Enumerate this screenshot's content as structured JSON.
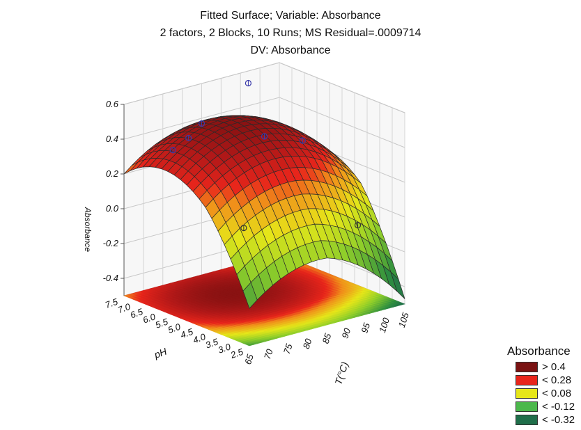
{
  "chart_data": {
    "type": "surface3d",
    "title_lines": [
      "Fitted Surface; Variable: Absorbance",
      "2 factors, 2 Blocks, 10 Runs; MS Residual=.0009714",
      "DV: Absorbance"
    ],
    "x_label": "T(°C)",
    "y_label": "pH",
    "z_label": "Absorbance",
    "x_ticks": [
      "65",
      "70",
      "75",
      "80",
      "85",
      "90",
      "95",
      "100",
      "105"
    ],
    "y_ticks": [
      "2.5",
      "3.0",
      "3.5",
      "4.0",
      "4.5",
      "5.0",
      "5.5",
      "6.0",
      "6.5",
      "7.0",
      "7.5"
    ],
    "z_ticks": [
      "0.6",
      "0.4",
      "0.2",
      "0.0",
      "-0.2",
      "-0.4"
    ],
    "x_range": [
      65,
      105
    ],
    "y_range": [
      2.5,
      7.5
    ],
    "z_range": [
      -0.5,
      0.6
    ],
    "legend": {
      "title": "Absorbance",
      "position": "bottom-right",
      "entries": [
        {
          "label": "> 0.4",
          "color": "#7a1212"
        },
        {
          "label": "< 0.28",
          "color": "#e8251b"
        },
        {
          "label": "< 0.08",
          "color": "#e6e619"
        },
        {
          "label": "< -0.12",
          "color": "#4cb84c"
        },
        {
          "label": "< -0.32",
          "color": "#1f6e4a"
        }
      ]
    },
    "surface_color_stops": [
      {
        "z": -0.45,
        "color": "#1f6e4a"
      },
      {
        "z": -0.32,
        "color": "#2f8f3f"
      },
      {
        "z": -0.12,
        "color": "#8fce2a"
      },
      {
        "z": 0.05,
        "color": "#e6e619"
      },
      {
        "z": 0.2,
        "color": "#f0901a"
      },
      {
        "z": 0.28,
        "color": "#e8251b"
      },
      {
        "z": 0.4,
        "color": "#b01818"
      },
      {
        "z": 0.55,
        "color": "#6e0e0e"
      }
    ],
    "observed_points": [
      {
        "T": 75,
        "pH": 7.1,
        "absorbance": 0.3
      },
      {
        "T": 97,
        "pH": 7.5,
        "absorbance": 0.53
      },
      {
        "T": 85,
        "pH": 7.5,
        "absorbance": 0.37
      },
      {
        "T": 70,
        "pH": 5.7,
        "absorbance": 0.48
      },
      {
        "T": 100,
        "pH": 5.8,
        "absorbance": 0.28
      },
      {
        "T": 85,
        "pH": 5.0,
        "absorbance": 0.44
      },
      {
        "T": 70,
        "pH": 3.5,
        "absorbance": 0.09
      },
      {
        "T": 100,
        "pH": 3.6,
        "absorbance": -0.08
      }
    ]
  }
}
